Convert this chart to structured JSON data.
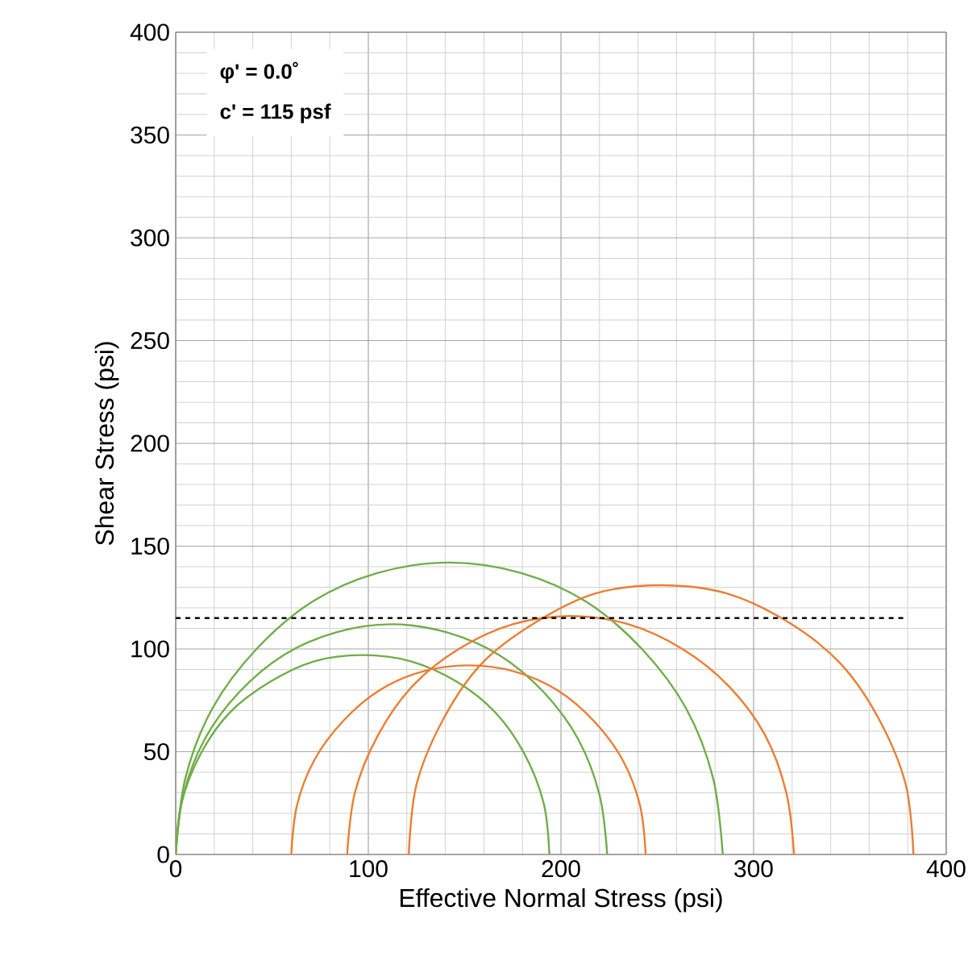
{
  "chart_data": {
    "type": "line",
    "xlabel": "Effective Normal Stress (psi)",
    "ylabel": "Shear Stress (psi)",
    "xlim": [
      0,
      400
    ],
    "ylim": [
      0,
      400
    ],
    "xticks": [
      0,
      100,
      200,
      300,
      400
    ],
    "yticks": [
      0,
      50,
      100,
      150,
      200,
      250,
      300,
      350,
      400
    ],
    "grid": true,
    "marker": "none",
    "annotations": [
      "φ' = 0.0˚",
      "c' = 115 psf"
    ],
    "ref_lines": [
      {
        "axis": "y",
        "value": 115,
        "color": "#000000",
        "line_style": "dashed"
      }
    ],
    "series": [
      {
        "color": "#70ad47",
        "x": [
          194,
          191,
          181,
          166,
          146,
          122,
          97,
          72,
          49,
          28,
          13,
          3,
          0
        ],
        "values": [
          0,
          25,
          49,
          69,
          84,
          94,
          97,
          94,
          84,
          69,
          49,
          25,
          0
        ]
      },
      {
        "color": "#70ad47",
        "x": [
          224,
          220,
          209,
          191,
          168,
          141,
          112,
          83,
          56,
          33,
          15,
          4,
          0
        ],
        "values": [
          0,
          29,
          56,
          79,
          97,
          108,
          112,
          108,
          97,
          79,
          56,
          29,
          0
        ]
      },
      {
        "color": "#70ad47",
        "x": [
          284,
          279,
          265,
          242,
          213,
          179,
          142,
          105,
          71,
          42,
          19,
          5,
          0
        ],
        "values": [
          0,
          37,
          71,
          100,
          123,
          137,
          142,
          137,
          123,
          100,
          71,
          37,
          0
        ]
      },
      {
        "color": "#ed7d31",
        "x": [
          244,
          241,
          232,
          217,
          198,
          176,
          152,
          128,
          106,
          87,
          72,
          63,
          60
        ],
        "values": [
          0,
          24,
          46,
          65,
          80,
          89,
          92,
          89,
          80,
          65,
          46,
          24,
          0
        ]
      },
      {
        "color": "#ed7d31",
        "x": [
          321,
          317,
          306,
          287,
          263,
          235,
          205,
          175,
          147,
          123,
          105,
          93,
          89
        ],
        "values": [
          0,
          30,
          58,
          82,
          100,
          112,
          116,
          112,
          100,
          82,
          58,
          30,
          0
        ]
      },
      {
        "color": "#ed7d31",
        "x": [
          383,
          379,
          365,
          345,
          318,
          286,
          252,
          218,
          187,
          159,
          139,
          125,
          121
        ],
        "values": [
          0,
          34,
          66,
          93,
          113,
          127,
          131,
          127,
          113,
          93,
          66,
          34,
          0
        ]
      }
    ]
  }
}
